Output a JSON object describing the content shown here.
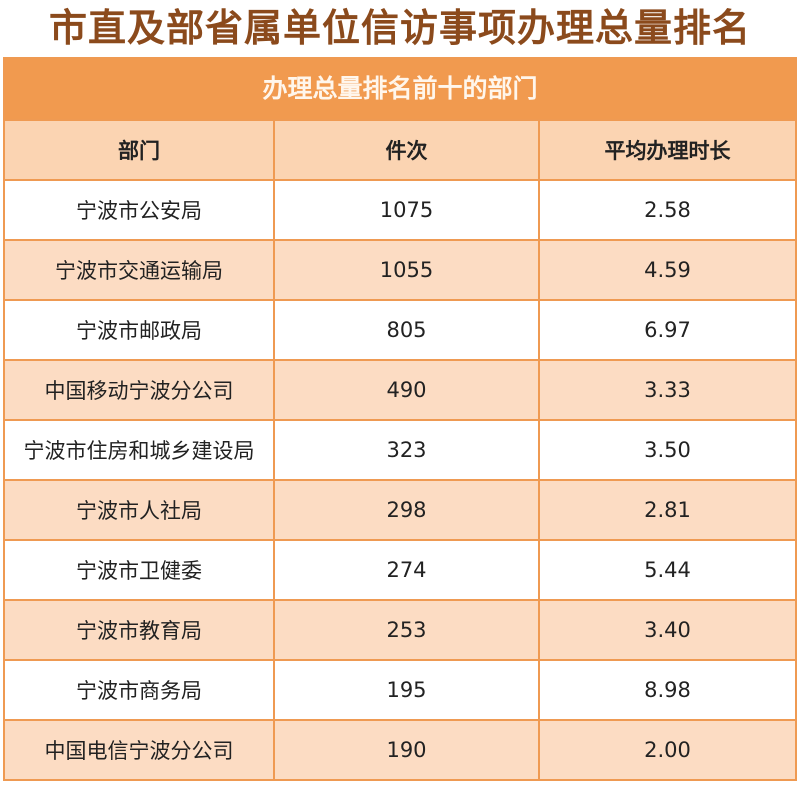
{
  "title": "市直及部省属单位信访事项办理总量排名",
  "colors": {
    "title": "#8b4a1c",
    "banner": "#f19a4f",
    "header": "#fbd4b2",
    "row_alt": "#fcdcc3",
    "border": "#ef9a52"
  },
  "chart_data": {
    "type": "table",
    "title": "办理总量排名前十的部门",
    "columns": [
      "部门",
      "件次",
      "平均办理时长"
    ],
    "rows": [
      [
        "宁波市公安局",
        "1075",
        "2.58"
      ],
      [
        "宁波市交通运输局",
        "1055",
        "4.59"
      ],
      [
        "宁波市邮政局",
        "805",
        "6.97"
      ],
      [
        "中国移动宁波分公司",
        "490",
        "3.33"
      ],
      [
        "宁波市住房和城乡建设局",
        "323",
        "3.50"
      ],
      [
        "宁波市人社局",
        "298",
        "2.81"
      ],
      [
        "宁波市卫健委",
        "274",
        "5.44"
      ],
      [
        "宁波市教育局",
        "253",
        "3.40"
      ],
      [
        "宁波市商务局",
        "195",
        "8.98"
      ],
      [
        "中国电信宁波分公司",
        "190",
        "2.00"
      ]
    ]
  }
}
